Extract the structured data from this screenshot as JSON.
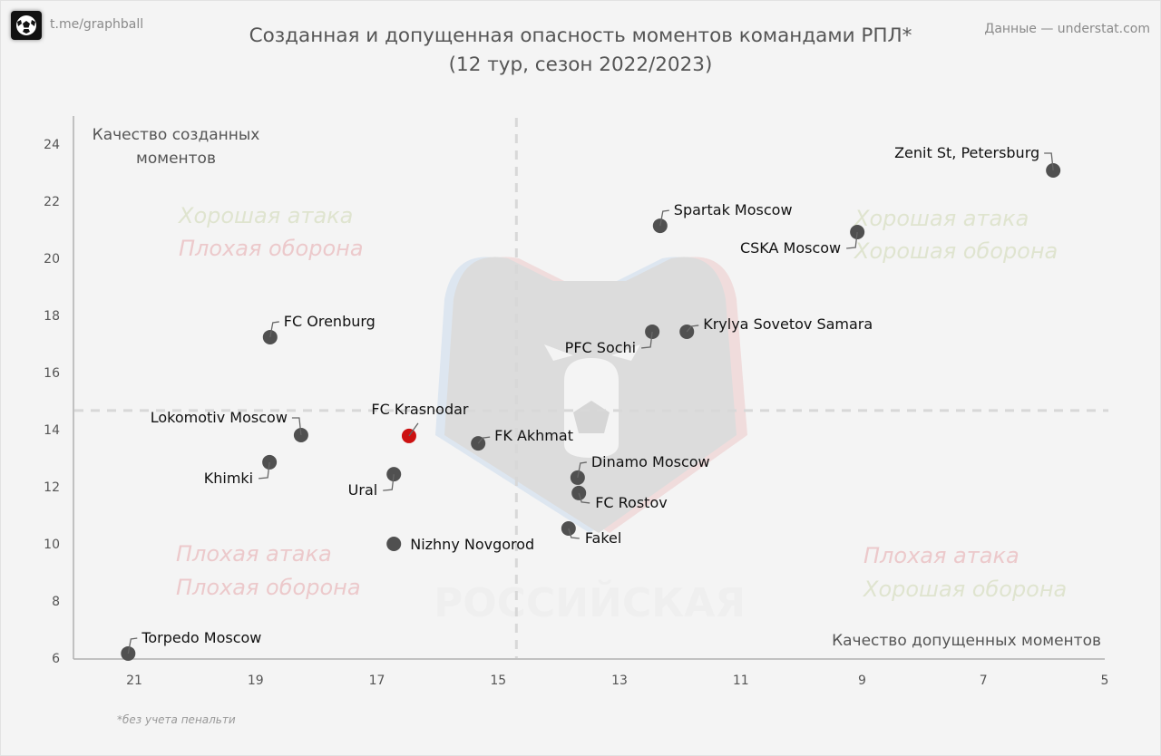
{
  "header": {
    "brand": "t.me/graphball",
    "brand_icon": "soccer-ball-icon",
    "source": "Данные — understat.com",
    "title_line1": "Созданная и допущенная опасность моментов командами РПЛ*",
    "title_line2": "(12 тур, сезон 2022/2023)"
  },
  "footnote": "*без учета пенальти",
  "colors": {
    "point": "#505050",
    "highlight": "#cc1111",
    "good": "#dfe4cf",
    "bad": "#ecc9cb",
    "dashed": "#d8d8d8",
    "axis": "#b0b0b0"
  },
  "watermark": {
    "icon": "rpl-bear-logo-icon",
    "text": "РОССИЙСКАЯ"
  },
  "chart_data": {
    "type": "scatter",
    "title": "Созданная и допущенная опасность моментов командами РПЛ* (12 тур, сезон 2022/2023)",
    "xlabel": "Качество допущенных моментов",
    "ylabel": "Качество созданных моментов",
    "ylabel_lines": [
      "Качество созданных",
      "моментов"
    ],
    "x_reversed": true,
    "xlim": [
      22,
      5
    ],
    "ylim": [
      6,
      25
    ],
    "x_ticks": [
      21,
      19,
      17,
      15,
      13,
      11,
      9,
      7,
      5
    ],
    "y_ticks": [
      6,
      8,
      10,
      12,
      14,
      16,
      18,
      20,
      22,
      24
    ],
    "grid": false,
    "reference_lines": {
      "x": 14.7,
      "y": 14.67
    },
    "quadrants": [
      {
        "position": "top-left",
        "line1": "Хорошая атака",
        "line1_tone": "good",
        "line2": "Плохая оборона",
        "line2_tone": "bad"
      },
      {
        "position": "top-right",
        "line1": "Хорошая атака",
        "line1_tone": "good",
        "line2": "Хорошая оборона",
        "line2_tone": "good"
      },
      {
        "position": "bottom-left",
        "line1": "Плохая атака",
        "line1_tone": "bad",
        "line2": "Плохая оборона",
        "line2_tone": "bad"
      },
      {
        "position": "bottom-right",
        "line1": "Плохая атака",
        "line1_tone": "bad",
        "line2": "Хорошая оборона",
        "line2_tone": "good"
      }
    ],
    "points": [
      {
        "team": "Zenit St, Petersburg",
        "x": 5.85,
        "y": 23.08,
        "label_pos": "left-above"
      },
      {
        "team": "Spartak Moscow",
        "x": 12.33,
        "y": 21.14,
        "label_pos": "right-above"
      },
      {
        "team": "CSKA Moscow",
        "x": 9.08,
        "y": 20.92,
        "label_pos": "left-below"
      },
      {
        "team": "FC Orenburg",
        "x": 18.76,
        "y": 17.24,
        "label_pos": "right-above"
      },
      {
        "team": "PFC Sochi",
        "x": 12.46,
        "y": 17.43,
        "label_pos": "left-below"
      },
      {
        "team": "Krylya Sovetov Samara",
        "x": 11.89,
        "y": 17.43,
        "label_pos": "right"
      },
      {
        "team": "Lokomotiv Moscow",
        "x": 18.25,
        "y": 13.81,
        "label_pos": "left-above"
      },
      {
        "team": "FC Krasnodar",
        "x": 16.47,
        "y": 13.78,
        "label_pos": "above",
        "highlight": true
      },
      {
        "team": "FK Akhmat",
        "x": 15.33,
        "y": 13.52,
        "label_pos": "right"
      },
      {
        "team": "Khimki",
        "x": 18.77,
        "y": 12.86,
        "label_pos": "left-below"
      },
      {
        "team": "Ural",
        "x": 16.72,
        "y": 12.44,
        "label_pos": "left-below"
      },
      {
        "team": "Dinamo Moscow",
        "x": 13.69,
        "y": 12.32,
        "label_pos": "right-above"
      },
      {
        "team": "FC Rostov",
        "x": 13.67,
        "y": 11.78,
        "label_pos": "right-below"
      },
      {
        "team": "Fakel",
        "x": 13.84,
        "y": 10.54,
        "label_pos": "right-below"
      },
      {
        "team": "Nizhny Novgorod",
        "x": 16.72,
        "y": 10.0,
        "label_pos": "right"
      },
      {
        "team": "Torpedo Moscow",
        "x": 21.1,
        "y": 6.16,
        "label_pos": "right-above"
      }
    ]
  }
}
